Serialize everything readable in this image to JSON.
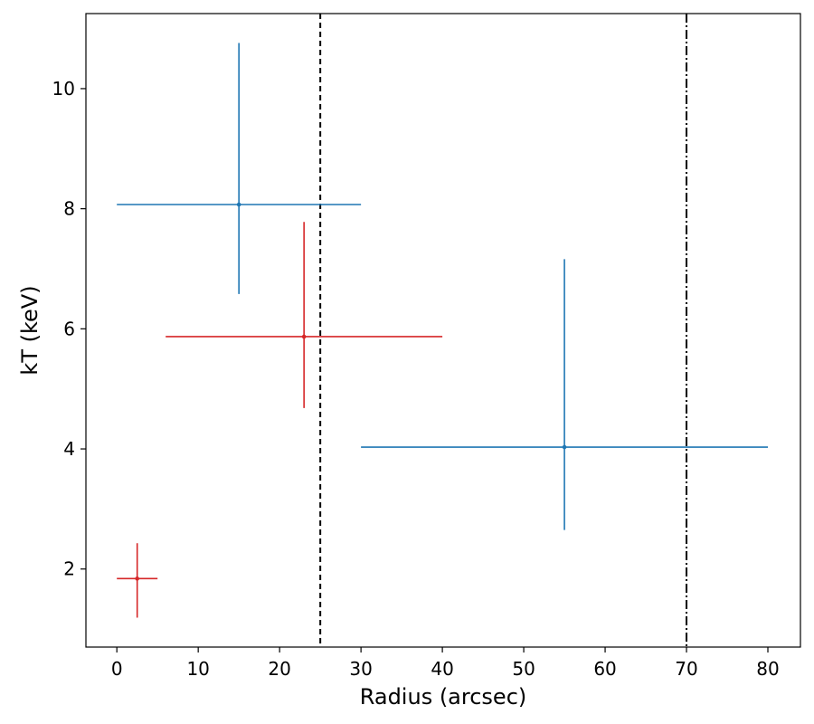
{
  "chart_data": {
    "type": "scatter",
    "xlabel": "Radius (arcsec)",
    "ylabel": "kT (keV)",
    "xlim": [
      -3.8,
      84
    ],
    "ylim": [
      0.7,
      11.25
    ],
    "xticks": [
      0,
      10,
      20,
      30,
      40,
      50,
      60,
      70,
      80
    ],
    "yticks": [
      2,
      4,
      6,
      8,
      10
    ],
    "grid": false,
    "series": [
      {
        "color": "#1f77b4",
        "points": [
          {
            "x": 15,
            "y": 8.07,
            "xerr": [
              15,
              15
            ],
            "yerr": [
              1.49,
              2.69
            ]
          },
          {
            "x": 55,
            "y": 4.03,
            "xerr": [
              25,
              25
            ],
            "yerr": [
              1.38,
              3.13
            ]
          }
        ]
      },
      {
        "color": "#d62728",
        "points": [
          {
            "x": 2.5,
            "y": 1.84,
            "xerr": [
              2.5,
              2.5
            ],
            "yerr": [
              0.65,
              0.59
            ]
          },
          {
            "x": 23,
            "y": 5.87,
            "xerr": [
              17,
              17
            ],
            "yerr": [
              1.19,
              1.91
            ]
          }
        ]
      }
    ],
    "vlines": [
      {
        "x": 25,
        "style": "dashed",
        "color": "#000000"
      },
      {
        "x": 70,
        "style": "dashdot",
        "color": "#000000"
      }
    ]
  }
}
